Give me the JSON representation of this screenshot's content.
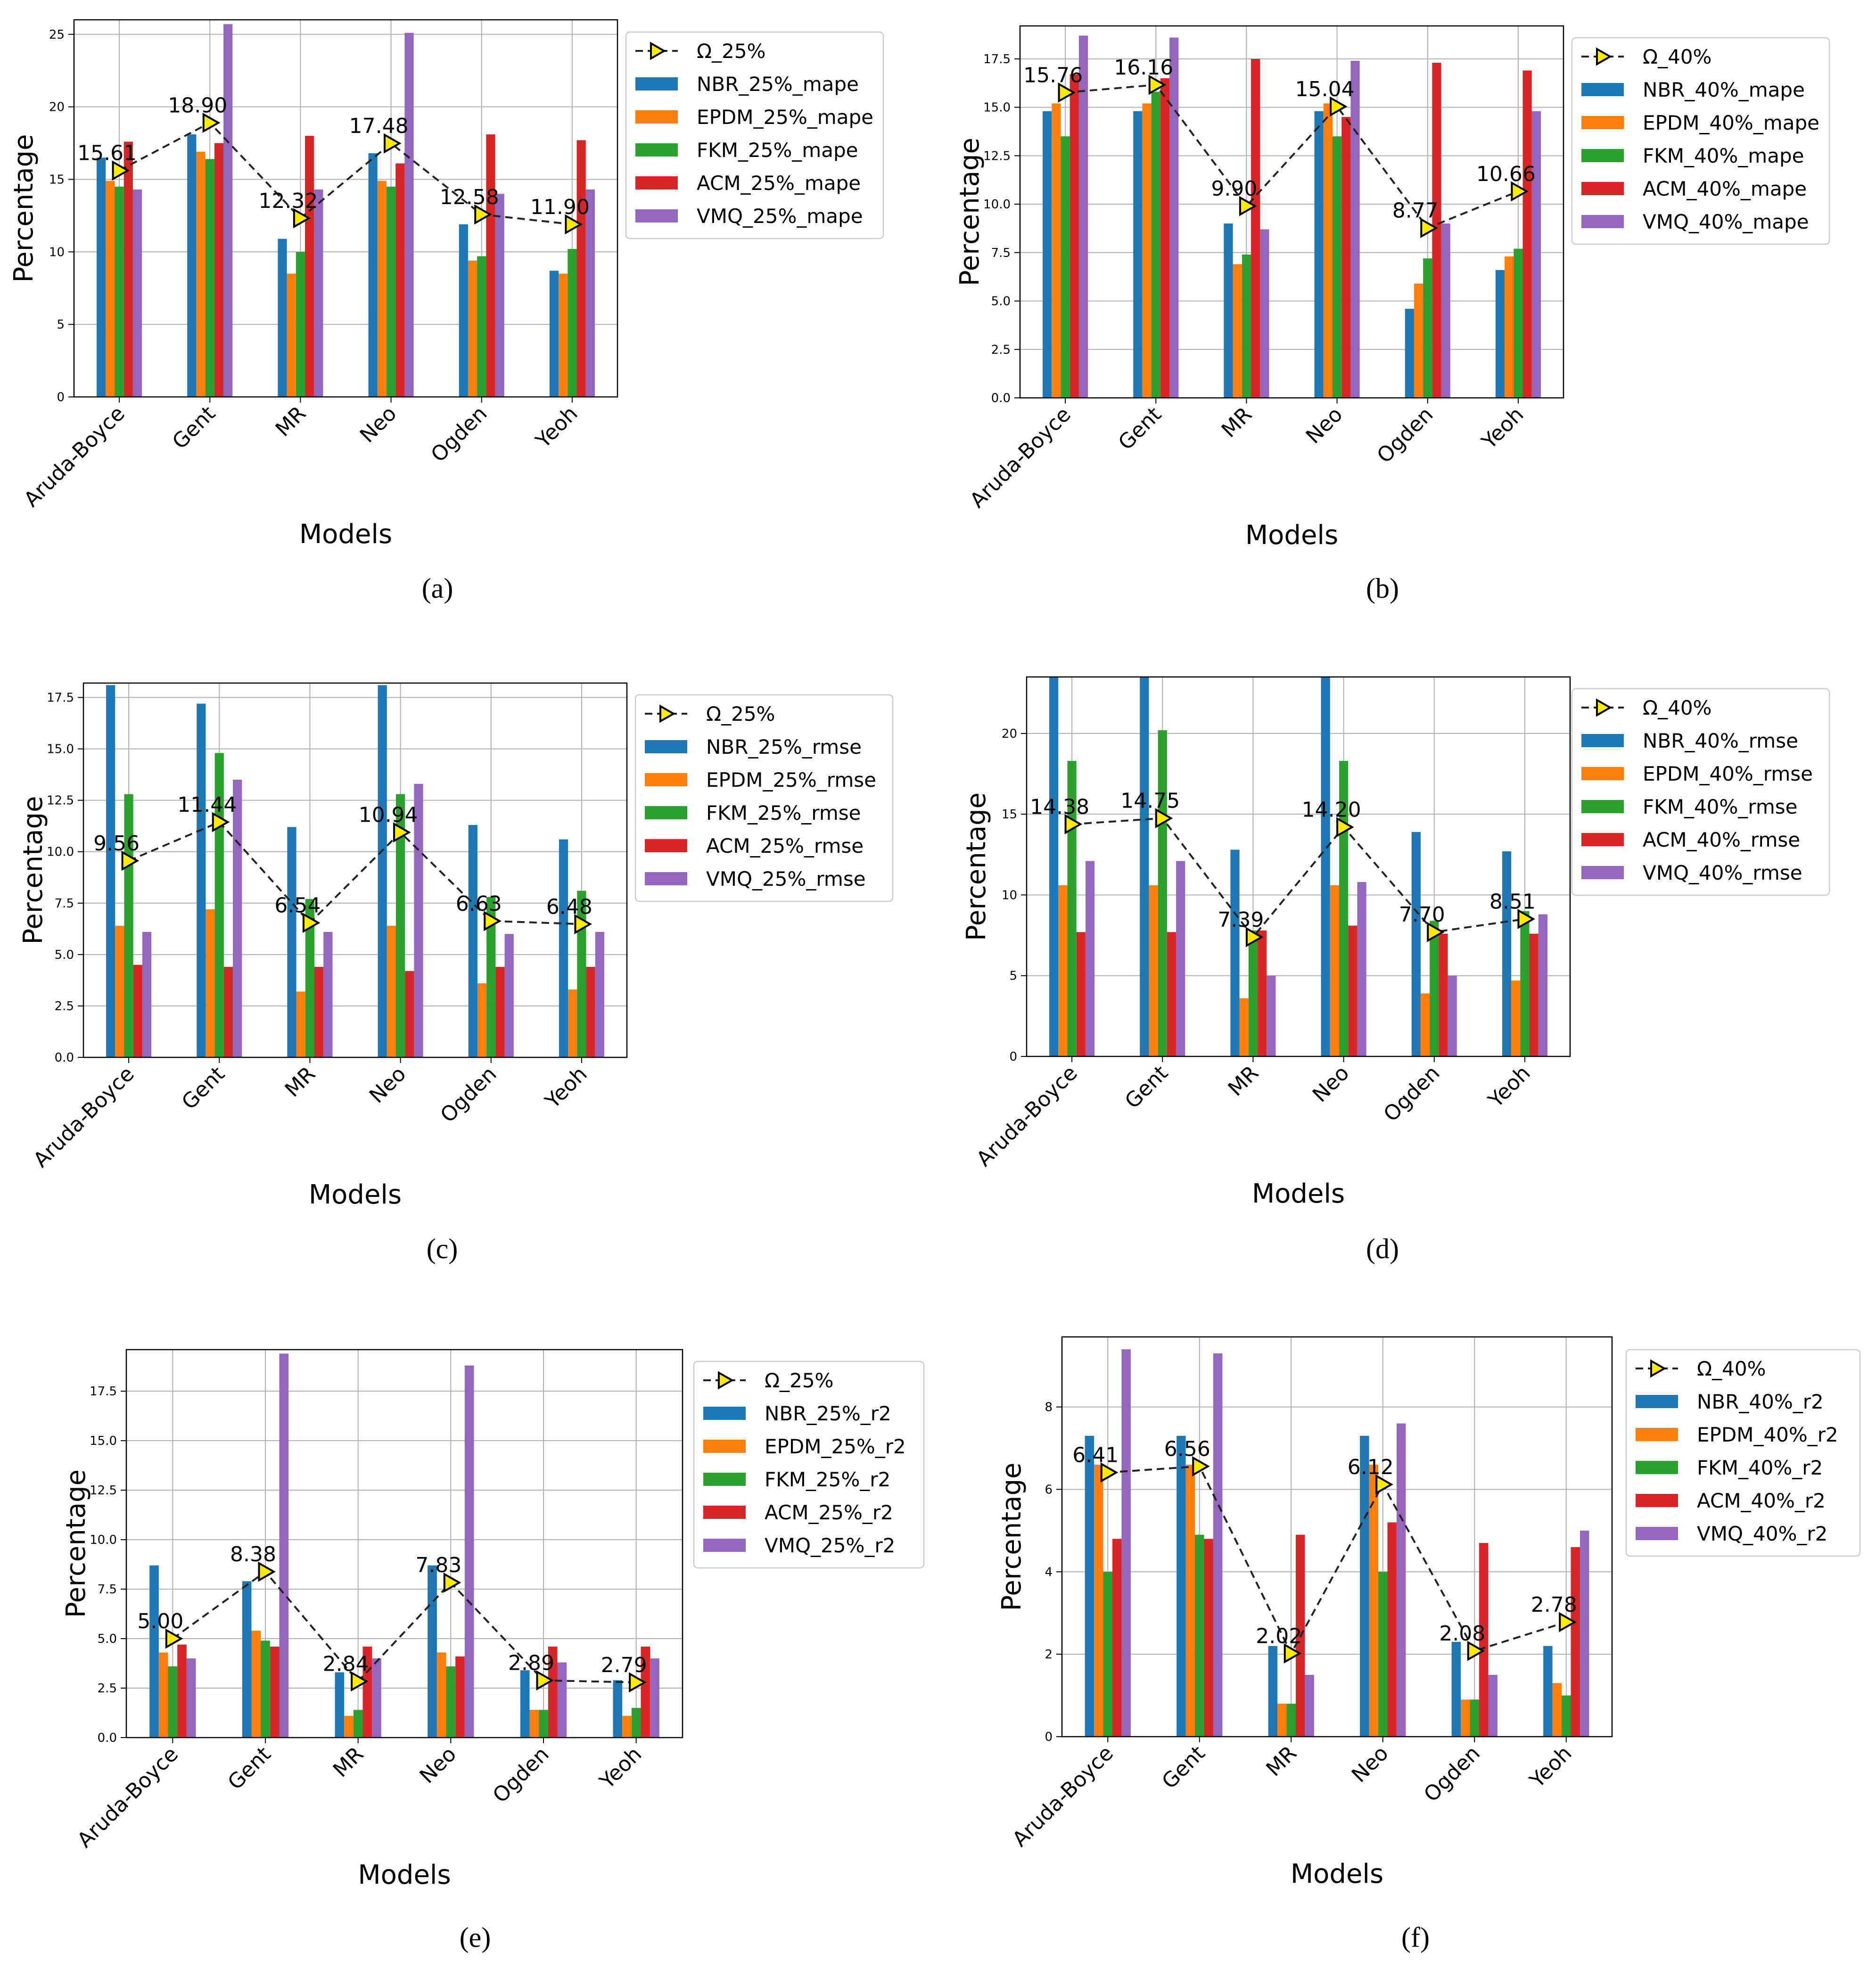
{
  "figure": {
    "colors": {
      "NBR": "#1f77b4",
      "EPDM": "#ff7f0e",
      "FKM": "#2ca02c",
      "ACM": "#d62728",
      "VMQ": "#9467bd",
      "omega_marker": "#ffeb00",
      "omega_line": "#222222",
      "grid": "#b0b0b0"
    },
    "legend_marker": "triangle-right-icon"
  },
  "chart_data": [
    {
      "id": "a",
      "caption": "(a)",
      "type": "bar",
      "xlabel": "Models",
      "ylabel": "Percentage",
      "ylim": [
        0,
        26
      ],
      "yticks": [
        0,
        5,
        10,
        15,
        20,
        25
      ],
      "ytick_labels": [
        "0",
        "5",
        "10",
        "15",
        "20",
        "25"
      ],
      "categories": [
        "Aruda-Boyce",
        "Gent",
        "MR",
        "Neo",
        "Ogden",
        "Yeoh"
      ],
      "series": [
        {
          "name": "NBR_25%_mape",
          "values": [
            16.5,
            18.1,
            10.9,
            16.8,
            11.9,
            8.7
          ]
        },
        {
          "name": "EPDM_25%_mape",
          "values": [
            14.9,
            16.9,
            8.5,
            14.9,
            9.4,
            8.5
          ]
        },
        {
          "name": "FKM_25%_mape",
          "values": [
            14.5,
            16.4,
            10.0,
            14.5,
            9.7,
            10.2
          ]
        },
        {
          "name": "ACM_25%_mape",
          "values": [
            17.6,
            17.5,
            18.0,
            16.1,
            18.1,
            17.7
          ]
        },
        {
          "name": "VMQ_25%_mape",
          "values": [
            14.3,
            25.7,
            14.3,
            25.1,
            14.0,
            14.3
          ]
        }
      ],
      "omega": {
        "name": "Ω_25%",
        "values": [
          15.61,
          18.9,
          12.32,
          17.48,
          12.58,
          11.9
        ],
        "labels": [
          "15.61",
          "18.90",
          "12.32",
          "17.48",
          "12.58",
          "11.90"
        ]
      }
    },
    {
      "id": "b",
      "caption": "(b)",
      "type": "bar",
      "xlabel": "Models",
      "ylabel": "Percentage",
      "ylim": [
        0,
        19.2
      ],
      "yticks": [
        0,
        2.5,
        5,
        7.5,
        10,
        12.5,
        15,
        17.5
      ],
      "ytick_labels": [
        "0.0",
        "2.5",
        "5.0",
        "7.5",
        "10.0",
        "12.5",
        "15.0",
        "17.5"
      ],
      "categories": [
        "Aruda-Boyce",
        "Gent",
        "MR",
        "Neo",
        "Ogden",
        "Yeoh"
      ],
      "series": [
        {
          "name": "NBR_40%_mape",
          "values": [
            14.8,
            14.8,
            9.0,
            14.8,
            4.6,
            6.6
          ]
        },
        {
          "name": "EPDM_40%_mape",
          "values": [
            15.2,
            15.2,
            6.9,
            15.2,
            5.9,
            7.3
          ]
        },
        {
          "name": "FKM_40%_mape",
          "values": [
            13.5,
            15.8,
            7.4,
            13.5,
            7.2,
            7.7
          ]
        },
        {
          "name": "ACM_40%_mape",
          "values": [
            16.7,
            16.5,
            17.5,
            14.5,
            17.3,
            16.9
          ]
        },
        {
          "name": "VMQ_40%_mape",
          "values": [
            18.7,
            18.6,
            8.7,
            17.4,
            9.0,
            14.8
          ]
        }
      ],
      "omega": {
        "name": "Ω_40%",
        "values": [
          15.76,
          16.16,
          9.9,
          15.04,
          8.77,
          10.66
        ],
        "labels": [
          "15.76",
          "16.16",
          "9.90",
          "15.04",
          "8.77",
          "10.66"
        ]
      }
    },
    {
      "id": "c",
      "caption": "(c)",
      "type": "bar",
      "xlabel": "Models",
      "ylabel": "Percentage",
      "ylim": [
        0,
        18.2
      ],
      "yticks": [
        0,
        2.5,
        5,
        7.5,
        10,
        12.5,
        15,
        17.5
      ],
      "ytick_labels": [
        "0.0",
        "2.5",
        "5.0",
        "7.5",
        "10.0",
        "12.5",
        "15.0",
        "17.5"
      ],
      "categories": [
        "Aruda-Boyce",
        "Gent",
        "MR",
        "Neo",
        "Ogden",
        "Yeoh"
      ],
      "series": [
        {
          "name": "NBR_25%_rmse",
          "values": [
            18.1,
            17.2,
            11.2,
            18.1,
            11.3,
            10.6
          ]
        },
        {
          "name": "EPDM_25%_rmse",
          "values": [
            6.4,
            7.2,
            3.2,
            6.4,
            3.6,
            3.3
          ]
        },
        {
          "name": "FKM_25%_rmse",
          "values": [
            12.8,
            14.8,
            7.7,
            12.8,
            7.8,
            8.1
          ]
        },
        {
          "name": "ACM_25%_rmse",
          "values": [
            4.5,
            4.4,
            4.4,
            4.2,
            4.4,
            4.4
          ]
        },
        {
          "name": "VMQ_25%_rmse",
          "values": [
            6.1,
            13.5,
            6.1,
            13.3,
            6.0,
            6.1
          ]
        }
      ],
      "omega": {
        "name": "Ω_25%",
        "values": [
          9.56,
          11.44,
          6.54,
          10.94,
          6.63,
          6.48
        ],
        "labels": [
          "9.56",
          "11.44",
          "6.54",
          "10.94",
          "6.63",
          "6.48"
        ]
      }
    },
    {
      "id": "d",
      "caption": "(d)",
      "type": "bar",
      "xlabel": "Models",
      "ylabel": "Percentage",
      "ylim": [
        0,
        23.5
      ],
      "yticks": [
        0,
        5,
        10,
        15,
        20
      ],
      "ytick_labels": [
        "0",
        "5",
        "10",
        "15",
        "20"
      ],
      "categories": [
        "Aruda-Boyce",
        "Gent",
        "MR",
        "Neo",
        "Ogden",
        "Yeoh"
      ],
      "series": [
        {
          "name": "NBR_40%_rmse",
          "values": [
            23.5,
            23.5,
            12.8,
            23.5,
            13.9,
            12.7
          ]
        },
        {
          "name": "EPDM_40%_rmse",
          "values": [
            10.6,
            10.6,
            3.6,
            10.6,
            3.9,
            4.7
          ]
        },
        {
          "name": "FKM_40%_rmse",
          "values": [
            18.3,
            20.2,
            7.8,
            18.3,
            8.4,
            9.0
          ]
        },
        {
          "name": "ACM_40%_rmse",
          "values": [
            7.7,
            7.7,
            7.8,
            8.1,
            7.6,
            7.6
          ]
        },
        {
          "name": "VMQ_40%_rmse",
          "values": [
            12.1,
            12.1,
            5.0,
            10.8,
            5.0,
            8.8
          ]
        }
      ],
      "omega": {
        "name": "Ω_40%",
        "values": [
          14.38,
          14.75,
          7.39,
          14.2,
          7.7,
          8.51
        ],
        "labels": [
          "14.38",
          "14.75",
          "7.39",
          "14.20",
          "7.70",
          "8.51"
        ]
      }
    },
    {
      "id": "e",
      "caption": "(e)",
      "type": "bar",
      "xlabel": "Models",
      "ylabel": "Percentage",
      "ylim": [
        0,
        19.6
      ],
      "yticks": [
        0,
        2.5,
        5,
        7.5,
        10,
        12.5,
        15,
        17.5
      ],
      "ytick_labels": [
        "0.0",
        "2.5",
        "5.0",
        "7.5",
        "10.0",
        "12.5",
        "15.0",
        "17.5"
      ],
      "categories": [
        "Aruda-Boyce",
        "Gent",
        "MR",
        "Neo",
        "Ogden",
        "Yeoh"
      ],
      "series": [
        {
          "name": "NBR_25%_r2",
          "values": [
            8.7,
            7.9,
            3.3,
            8.7,
            3.4,
            2.9
          ]
        },
        {
          "name": "EPDM_25%_r2",
          "values": [
            4.3,
            5.4,
            1.1,
            4.3,
            1.4,
            1.1
          ]
        },
        {
          "name": "FKM_25%_r2",
          "values": [
            3.6,
            4.9,
            1.4,
            3.6,
            1.4,
            1.5
          ]
        },
        {
          "name": "ACM_25%_r2",
          "values": [
            4.7,
            4.6,
            4.6,
            4.1,
            4.6,
            4.6
          ]
        },
        {
          "name": "VMQ_25%_r2",
          "values": [
            4.0,
            19.4,
            4.0,
            18.8,
            3.8,
            4.0
          ]
        }
      ],
      "omega": {
        "name": "Ω_25%",
        "values": [
          5.0,
          8.38,
          2.84,
          7.83,
          2.89,
          2.79
        ],
        "labels": [
          "5.00",
          "8.38",
          "2.84",
          "7.83",
          "2.89",
          "2.79"
        ]
      }
    },
    {
      "id": "f",
      "caption": "(f)",
      "type": "bar",
      "xlabel": "Models",
      "ylabel": "Percentage",
      "ylim": [
        0,
        9.7
      ],
      "yticks": [
        0,
        2,
        4,
        6,
        8
      ],
      "ytick_labels": [
        "0",
        "2",
        "4",
        "6",
        "8"
      ],
      "categories": [
        "Aruda-Boyce",
        "Gent",
        "MR",
        "Neo",
        "Ogden",
        "Yeoh"
      ],
      "series": [
        {
          "name": "NBR_40%_r2",
          "values": [
            7.3,
            7.3,
            2.2,
            7.3,
            2.3,
            2.2
          ]
        },
        {
          "name": "EPDM_40%_r2",
          "values": [
            6.6,
            6.6,
            0.8,
            6.6,
            0.9,
            1.3
          ]
        },
        {
          "name": "FKM_40%_r2",
          "values": [
            4.0,
            4.9,
            0.8,
            4.0,
            0.9,
            1.0
          ]
        },
        {
          "name": "ACM_40%_r2",
          "values": [
            4.8,
            4.8,
            4.9,
            5.2,
            4.7,
            4.6
          ]
        },
        {
          "name": "VMQ_40%_r2",
          "values": [
            9.4,
            9.3,
            1.5,
            7.6,
            1.5,
            5.0
          ]
        }
      ],
      "omega": {
        "name": "Ω_40%",
        "values": [
          6.41,
          6.56,
          2.02,
          6.12,
          2.08,
          2.78
        ],
        "labels": [
          "6.41",
          "6.56",
          "2.02",
          "6.12",
          "2.08",
          "2.78"
        ]
      }
    }
  ]
}
